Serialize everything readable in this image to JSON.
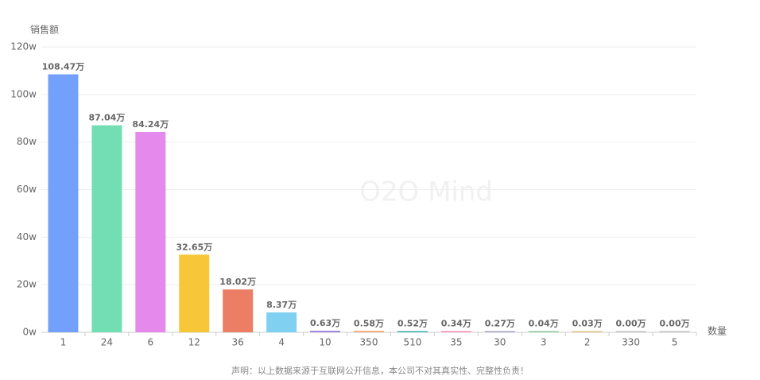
{
  "chart_data": {
    "type": "bar",
    "y_axis_label": "销售额",
    "x_axis_label": "数量",
    "watermark": "O2O Mind",
    "footer": "声明：以上数据来源于互联网公开信息，本公司不对其真实性、完整性负责！",
    "categories": [
      "1",
      "24",
      "6",
      "12",
      "36",
      "4",
      "10",
      "350",
      "510",
      "35",
      "30",
      "3",
      "2",
      "330",
      "5"
    ],
    "values": [
      108.47,
      87.04,
      84.24,
      32.65,
      18.02,
      8.37,
      0.63,
      0.58,
      0.52,
      0.34,
      0.27,
      0.04,
      0.03,
      0.0,
      0.0
    ],
    "value_labels": [
      "108.47万",
      "87.04万",
      "84.24万",
      "32.65万",
      "18.02万",
      "8.37万",
      "0.63万",
      "0.58万",
      "0.52万",
      "0.34万",
      "0.27万",
      "0.04万",
      "0.03万",
      "0.00万",
      "0.00万"
    ],
    "colors": [
      "#73a0fa",
      "#73deb3",
      "#e58aec",
      "#f7c739",
      "#eb7e65",
      "#7fd0f1",
      "#9b7fe0",
      "#f5a470",
      "#3fb1b1",
      "#f08fb5",
      "#a2a2c8",
      "#8dc8a0",
      "#e0c080",
      "#c0c0c0",
      "#c0c0c0"
    ],
    "ylim": [
      0,
      120
    ],
    "yticks": [
      {
        "value": 0,
        "label": "0w"
      },
      {
        "value": 20,
        "label": "20w"
      },
      {
        "value": 40,
        "label": "40w"
      },
      {
        "value": 60,
        "label": "60w"
      },
      {
        "value": 80,
        "label": "80w"
      },
      {
        "value": 100,
        "label": "100w"
      },
      {
        "value": 120,
        "label": "120w"
      }
    ],
    "grid": true
  }
}
